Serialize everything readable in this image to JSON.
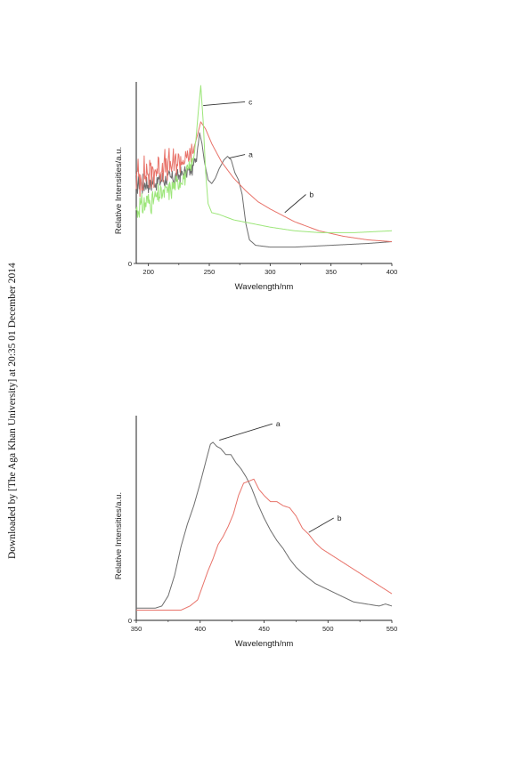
{
  "watermark": "Downloaded by [The Aga Khan University] at 20:35 01 December 2014",
  "chart_data": [
    {
      "type": "line",
      "xlabel": "Wavelength/nm",
      "ylabel": "Relative Intensities/a.u.",
      "xlim": [
        190,
        400
      ],
      "ylim": [
        0,
        1
      ],
      "xticks": [
        200,
        250,
        300,
        350,
        400
      ],
      "xtick_labels": [
        "200",
        "250",
        "300",
        "350",
        "400"
      ],
      "ytick_labels": [
        "0"
      ],
      "grid": false,
      "annotations": [
        {
          "text": "a",
          "series": "a",
          "point": [
            266,
            0.58
          ],
          "label_at": [
            283,
            0.6
          ]
        },
        {
          "text": "b",
          "series": "b",
          "point": [
            312,
            0.28
          ],
          "label_at": [
            333,
            0.38
          ]
        },
        {
          "text": "c",
          "series": "c",
          "point": [
            245,
            0.87
          ],
          "label_at": [
            283,
            0.89
          ]
        }
      ],
      "series": [
        {
          "name": "a",
          "color": "#6d6d6d",
          "noise": [
            190,
            240,
            0.06
          ],
          "points": [
            [
              190,
              0.45
            ],
            [
              200,
              0.44
            ],
            [
              210,
              0.46
            ],
            [
              220,
              0.47
            ],
            [
              230,
              0.5
            ],
            [
              236,
              0.52
            ],
            [
              239,
              0.58
            ],
            [
              241,
              0.66
            ],
            [
              242,
              0.72
            ],
            [
              244,
              0.66
            ],
            [
              246,
              0.56
            ],
            [
              249,
              0.46
            ],
            [
              252,
              0.44
            ],
            [
              255,
              0.47
            ],
            [
              258,
              0.52
            ],
            [
              262,
              0.57
            ],
            [
              265,
              0.59
            ],
            [
              268,
              0.57
            ],
            [
              271,
              0.5
            ],
            [
              274,
              0.46
            ],
            [
              277,
              0.38
            ],
            [
              280,
              0.22
            ],
            [
              283,
              0.13
            ],
            [
              288,
              0.1
            ],
            [
              300,
              0.09
            ],
            [
              320,
              0.09
            ],
            [
              350,
              0.1
            ],
            [
              380,
              0.11
            ],
            [
              400,
              0.12
            ]
          ]
        },
        {
          "name": "b",
          "color": "#e8736a",
          "noise": [
            190,
            238,
            0.1
          ],
          "points": [
            [
              190,
              0.47
            ],
            [
              200,
              0.5
            ],
            [
              210,
              0.53
            ],
            [
              220,
              0.55
            ],
            [
              230,
              0.57
            ],
            [
              236,
              0.6
            ],
            [
              240,
              0.7
            ],
            [
              243,
              0.78
            ],
            [
              247,
              0.74
            ],
            [
              252,
              0.66
            ],
            [
              260,
              0.56
            ],
            [
              270,
              0.47
            ],
            [
              280,
              0.4
            ],
            [
              290,
              0.34
            ],
            [
              300,
              0.3
            ],
            [
              320,
              0.23
            ],
            [
              340,
              0.18
            ],
            [
              360,
              0.15
            ],
            [
              380,
              0.13
            ],
            [
              400,
              0.12
            ]
          ]
        },
        {
          "name": "c",
          "color": "#9de67a",
          "noise": [
            190,
            238,
            0.07
          ],
          "points": [
            [
              190,
              0.3
            ],
            [
              200,
              0.34
            ],
            [
              210,
              0.38
            ],
            [
              220,
              0.42
            ],
            [
              230,
              0.48
            ],
            [
              236,
              0.55
            ],
            [
              239,
              0.68
            ],
            [
              241,
              0.84
            ],
            [
              243,
              0.98
            ],
            [
              245,
              0.78
            ],
            [
              247,
              0.5
            ],
            [
              249,
              0.33
            ],
            [
              252,
              0.28
            ],
            [
              258,
              0.27
            ],
            [
              270,
              0.24
            ],
            [
              285,
              0.22
            ],
            [
              300,
              0.2
            ],
            [
              320,
              0.18
            ],
            [
              340,
              0.17
            ],
            [
              370,
              0.17
            ],
            [
              400,
              0.18
            ]
          ]
        }
      ]
    },
    {
      "type": "line",
      "xlabel": "Wavelength/nm",
      "ylabel": "Relative Intensities/a.u.",
      "xlim": [
        350,
        550
      ],
      "ylim": [
        0,
        1
      ],
      "xticks": [
        350,
        400,
        450,
        500,
        550
      ],
      "xtick_labels": [
        "350",
        "400",
        "450",
        "500",
        "550"
      ],
      "ytick_labels": [
        "0"
      ],
      "grid": false,
      "annotations": [
        {
          "text": "a",
          "series": "a",
          "point": [
            415,
            0.88
          ],
          "label_at": [
            460,
            0.96
          ]
        },
        {
          "text": "b",
          "series": "b",
          "point": [
            485,
            0.43
          ],
          "label_at": [
            508,
            0.5
          ]
        }
      ],
      "series": [
        {
          "name": "a",
          "color": "#6d6d6d",
          "points": [
            [
              350,
              0.06
            ],
            [
              365,
              0.06
            ],
            [
              370,
              0.07
            ],
            [
              375,
              0.12
            ],
            [
              380,
              0.22
            ],
            [
              385,
              0.36
            ],
            [
              390,
              0.47
            ],
            [
              395,
              0.56
            ],
            [
              400,
              0.67
            ],
            [
              405,
              0.79
            ],
            [
              408,
              0.86
            ],
            [
              410,
              0.87
            ],
            [
              413,
              0.85
            ],
            [
              416,
              0.84
            ],
            [
              420,
              0.81
            ],
            [
              424,
              0.81
            ],
            [
              428,
              0.77
            ],
            [
              432,
              0.74
            ],
            [
              436,
              0.7
            ],
            [
              440,
              0.65
            ],
            [
              445,
              0.57
            ],
            [
              450,
              0.5
            ],
            [
              455,
              0.44
            ],
            [
              460,
              0.39
            ],
            [
              465,
              0.35
            ],
            [
              470,
              0.3
            ],
            [
              475,
              0.26
            ],
            [
              480,
              0.23
            ],
            [
              490,
              0.18
            ],
            [
              500,
              0.15
            ],
            [
              510,
              0.12
            ],
            [
              520,
              0.09
            ],
            [
              530,
              0.08
            ],
            [
              540,
              0.07
            ],
            [
              545,
              0.08
            ],
            [
              550,
              0.07
            ]
          ]
        },
        {
          "name": "b",
          "color": "#e8736a",
          "points": [
            [
              350,
              0.05
            ],
            [
              370,
              0.05
            ],
            [
              385,
              0.05
            ],
            [
              392,
              0.07
            ],
            [
              398,
              0.1
            ],
            [
              402,
              0.17
            ],
            [
              406,
              0.24
            ],
            [
              410,
              0.3
            ],
            [
              414,
              0.37
            ],
            [
              418,
              0.41
            ],
            [
              422,
              0.46
            ],
            [
              426,
              0.52
            ],
            [
              430,
              0.61
            ],
            [
              434,
              0.67
            ],
            [
              438,
              0.68
            ],
            [
              442,
              0.69
            ],
            [
              446,
              0.64
            ],
            [
              450,
              0.61
            ],
            [
              455,
              0.58
            ],
            [
              460,
              0.58
            ],
            [
              465,
              0.56
            ],
            [
              470,
              0.55
            ],
            [
              475,
              0.51
            ],
            [
              480,
              0.45
            ],
            [
              485,
              0.42
            ],
            [
              490,
              0.38
            ],
            [
              495,
              0.35
            ],
            [
              500,
              0.33
            ],
            [
              505,
              0.31
            ],
            [
              510,
              0.29
            ],
            [
              520,
              0.25
            ],
            [
              530,
              0.21
            ],
            [
              540,
              0.17
            ],
            [
              550,
              0.13
            ]
          ]
        }
      ]
    }
  ]
}
